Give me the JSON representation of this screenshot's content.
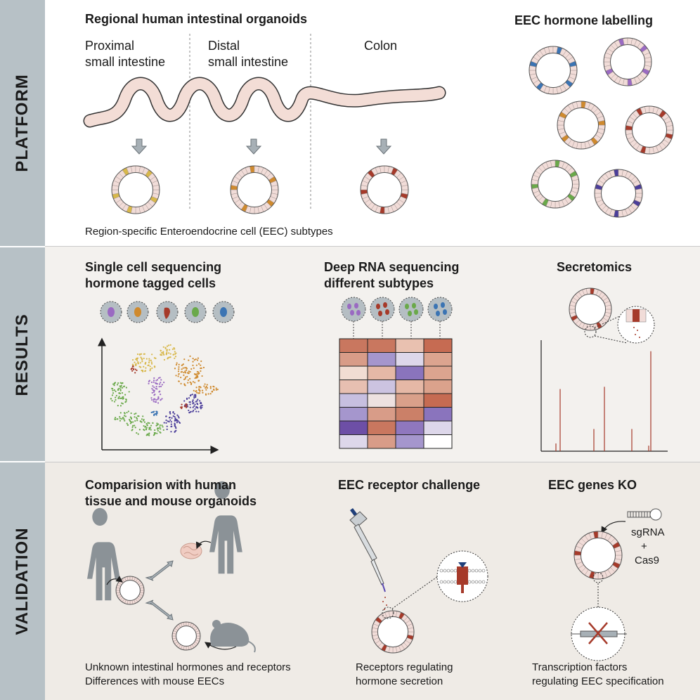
{
  "sections": {
    "platform": "PLATFORM",
    "results": "RESULTS",
    "validation": "VALIDATION"
  },
  "platform": {
    "title": "Regional human intestinal organoids",
    "regions": [
      "Proximal\nsmall intestine",
      "Distal\nsmall intestine",
      "Colon"
    ],
    "caption": "Region-specific Enteroendocrine cell (EEC) subtypes",
    "labelling_title": "EEC hormone labelling"
  },
  "results": {
    "sc_title": "Single cell sequencing\nhormone tagged cells",
    "rna_title": "Deep RNA sequencing\ndifferent subtypes",
    "secretomics_title": "Secretomics"
  },
  "validation": {
    "comparison_title": "Comparision with human\ntissue and mouse organoids",
    "comparison_caption": "Unknown intestinal hormones and receptors\nDifferences with mouse EECs",
    "receptor_title": "EEC receptor challenge",
    "receptor_caption": "Receptors regulating\nhormone secretion",
    "ko_title": "EEC genes KO",
    "ko_sgrna": "sgRNA",
    "ko_plus": "+",
    "ko_cas9": "Cas9",
    "ko_caption": "Transcription factors\nregulating EEC specification"
  },
  "colors": {
    "sidebar": "#b7c1c6",
    "platform_bg": "#ffffff",
    "results_bg": "#f3f1ee",
    "validation_bg": "#efebe6",
    "intestine_fill": "#f3ddd6",
    "organoid_cell": "#f1dcd8",
    "yellow_eec": "#d8b84a",
    "orange_eec": "#cf8a2e",
    "red_eec": "#a63a2a",
    "blue_eec": "#3b74b3",
    "purple_eec": "#9a6ac2",
    "green_eec": "#6aa94a",
    "indigo_eec": "#4b3e9a"
  },
  "heatmap": [
    [
      "#c9775f",
      "#c9775f",
      "#e9c1b0",
      "#c66b52"
    ],
    [
      "#d89c88",
      "#a596cd",
      "#ddd7ea",
      "#dca48f"
    ],
    [
      "#f1ddd3",
      "#e5b8a6",
      "#8a74bd",
      "#dca48f"
    ],
    [
      "#e7bfb1",
      "#ccc3e1",
      "#e5b8a6",
      "#dba28c"
    ],
    [
      "#c7bfe0",
      "#ede1e0",
      "#d9a08a",
      "#c66b52"
    ],
    [
      "#a596cd",
      "#d89c88",
      "#cb8068",
      "#8a74bd"
    ],
    [
      "#6d4fa6",
      "#c9775f",
      "#8f77be",
      "#ddd7ea"
    ],
    [
      "#ddd7ea",
      "#d89c88",
      "#a596cd",
      "#ffffff"
    ]
  ],
  "secretomics_peaks": [
    0.07,
    0.58,
    0.2,
    0.83,
    0.19,
    0.95
  ]
}
